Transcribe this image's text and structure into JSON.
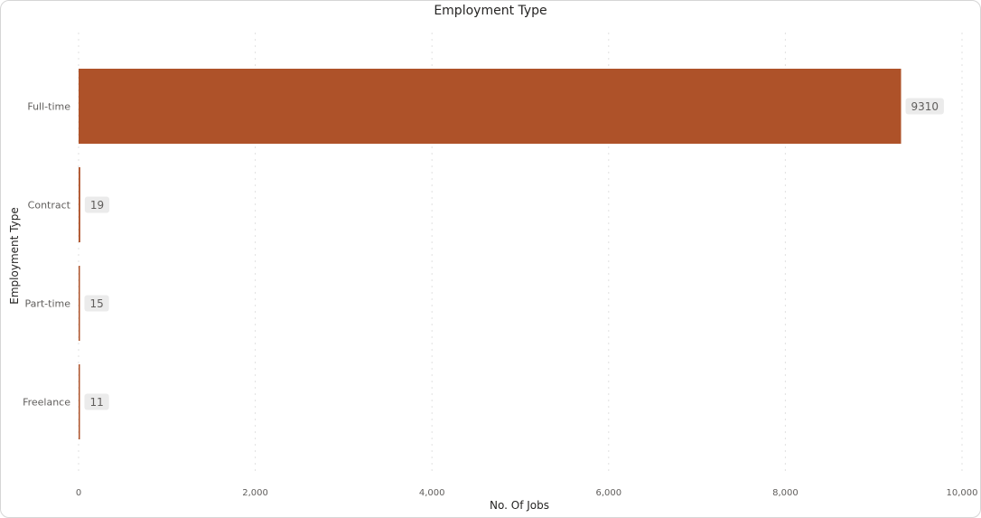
{
  "chart_data": {
    "type": "bar",
    "orientation": "horizontal",
    "title": "Employment Type",
    "xlabel": "No. Of Jobs",
    "ylabel": "Employment Type",
    "categories": [
      "Full-time",
      "Contract",
      "Part-time",
      "Freelance"
    ],
    "values": [
      9310,
      19,
      15,
      11
    ],
    "data_labels": [
      "9310",
      "19",
      "15",
      "11"
    ],
    "xlim": [
      0,
      10000
    ],
    "xticks": [
      0,
      2000,
      4000,
      6000,
      8000,
      10000
    ],
    "xtick_labels": [
      "0",
      "2,000",
      "4,000",
      "6,000",
      "8,000",
      "10,000"
    ],
    "grid": true,
    "legend": "none",
    "colors": {
      "bar": "#AE5229",
      "label_bg": "#EBEBEB",
      "grid": "#E1E1E1"
    }
  }
}
